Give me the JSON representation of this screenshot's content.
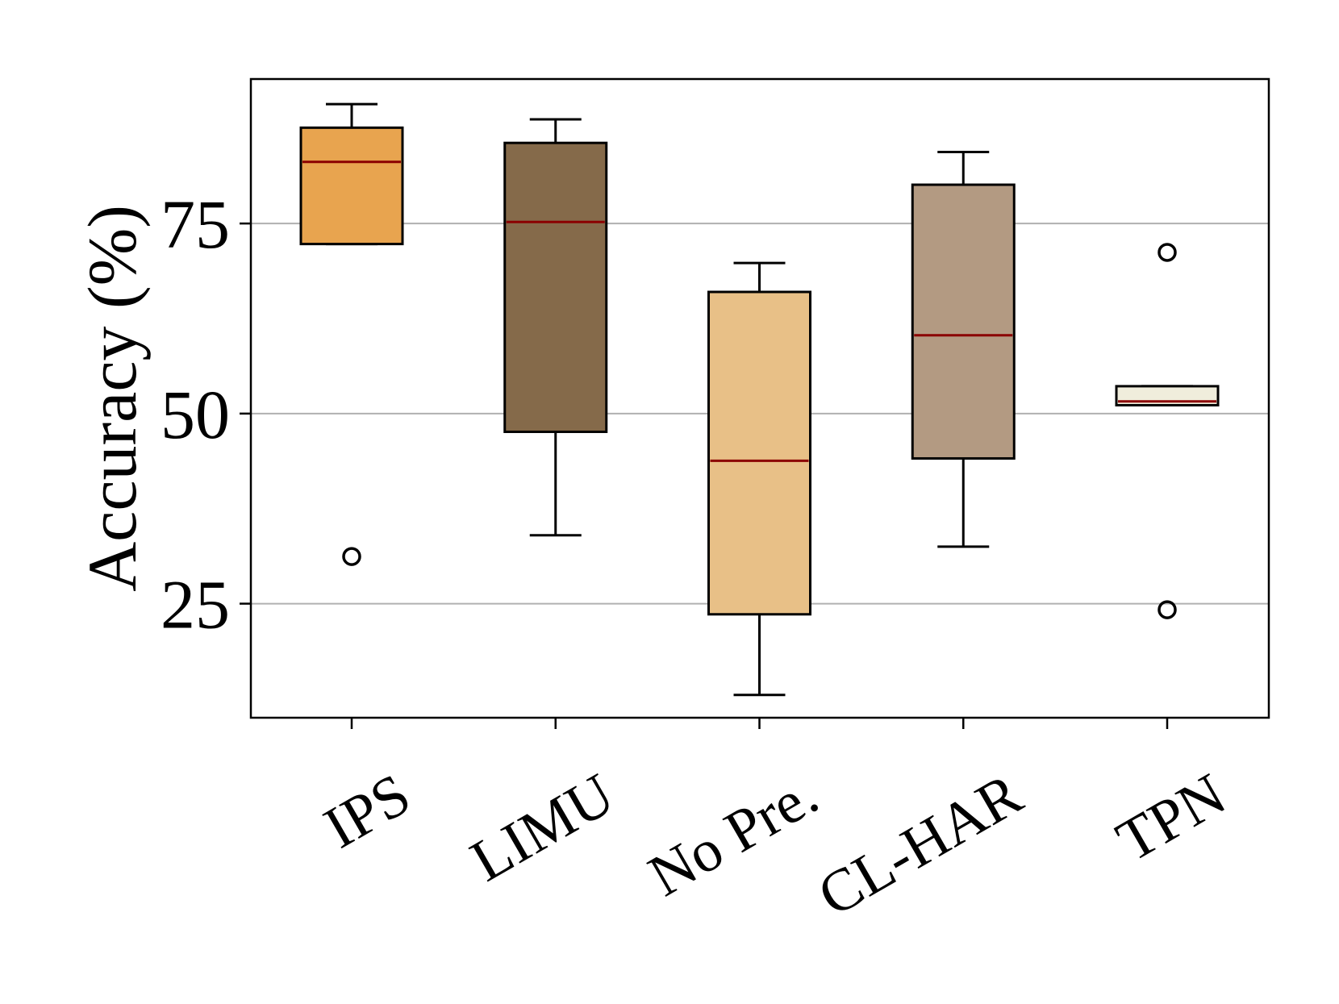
{
  "chart_data": {
    "type": "box",
    "title": "",
    "xlabel": "",
    "ylabel": "Accuracy (%)",
    "ylim": [
      10,
      94
    ],
    "yticks": [
      25,
      50,
      75
    ],
    "grid": {
      "axis": "y",
      "on": true
    },
    "categories": [
      "IPS",
      "LIMU",
      "No Pre.",
      "CL-HAR",
      "TPN"
    ],
    "boxes": [
      {
        "label": "IPS",
        "whisker_low": 72.3,
        "q1": 72.3,
        "median": 83.1,
        "q3": 87.6,
        "whisker_high": 90.7,
        "fliers": [
          31.2
        ],
        "color": "#E8A44F"
      },
      {
        "label": "LIMU",
        "whisker_low": 34.0,
        "q1": 47.6,
        "median": 75.2,
        "q3": 85.6,
        "whisker_high": 88.7,
        "fliers": [],
        "color": "#856A4A"
      },
      {
        "label": "No Pre.",
        "whisker_low": 13.0,
        "q1": 23.6,
        "median": 43.8,
        "q3": 66.0,
        "whisker_high": 69.8,
        "fliers": [],
        "color": "#E8C087"
      },
      {
        "label": "CL-HAR",
        "whisker_low": 32.5,
        "q1": 44.1,
        "median": 60.3,
        "q3": 80.1,
        "whisker_high": 84.4,
        "fliers": [],
        "color": "#B39A82"
      },
      {
        "label": "TPN",
        "whisker_low": 51.1,
        "q1": 51.1,
        "median": 51.6,
        "q3": 53.6,
        "whisker_high": 53.6,
        "fliers": [
          71.2,
          24.2
        ],
        "color": "#F0EDDC"
      }
    ],
    "median_color": "#8B0000",
    "grid_color": "#b0b0b0"
  }
}
